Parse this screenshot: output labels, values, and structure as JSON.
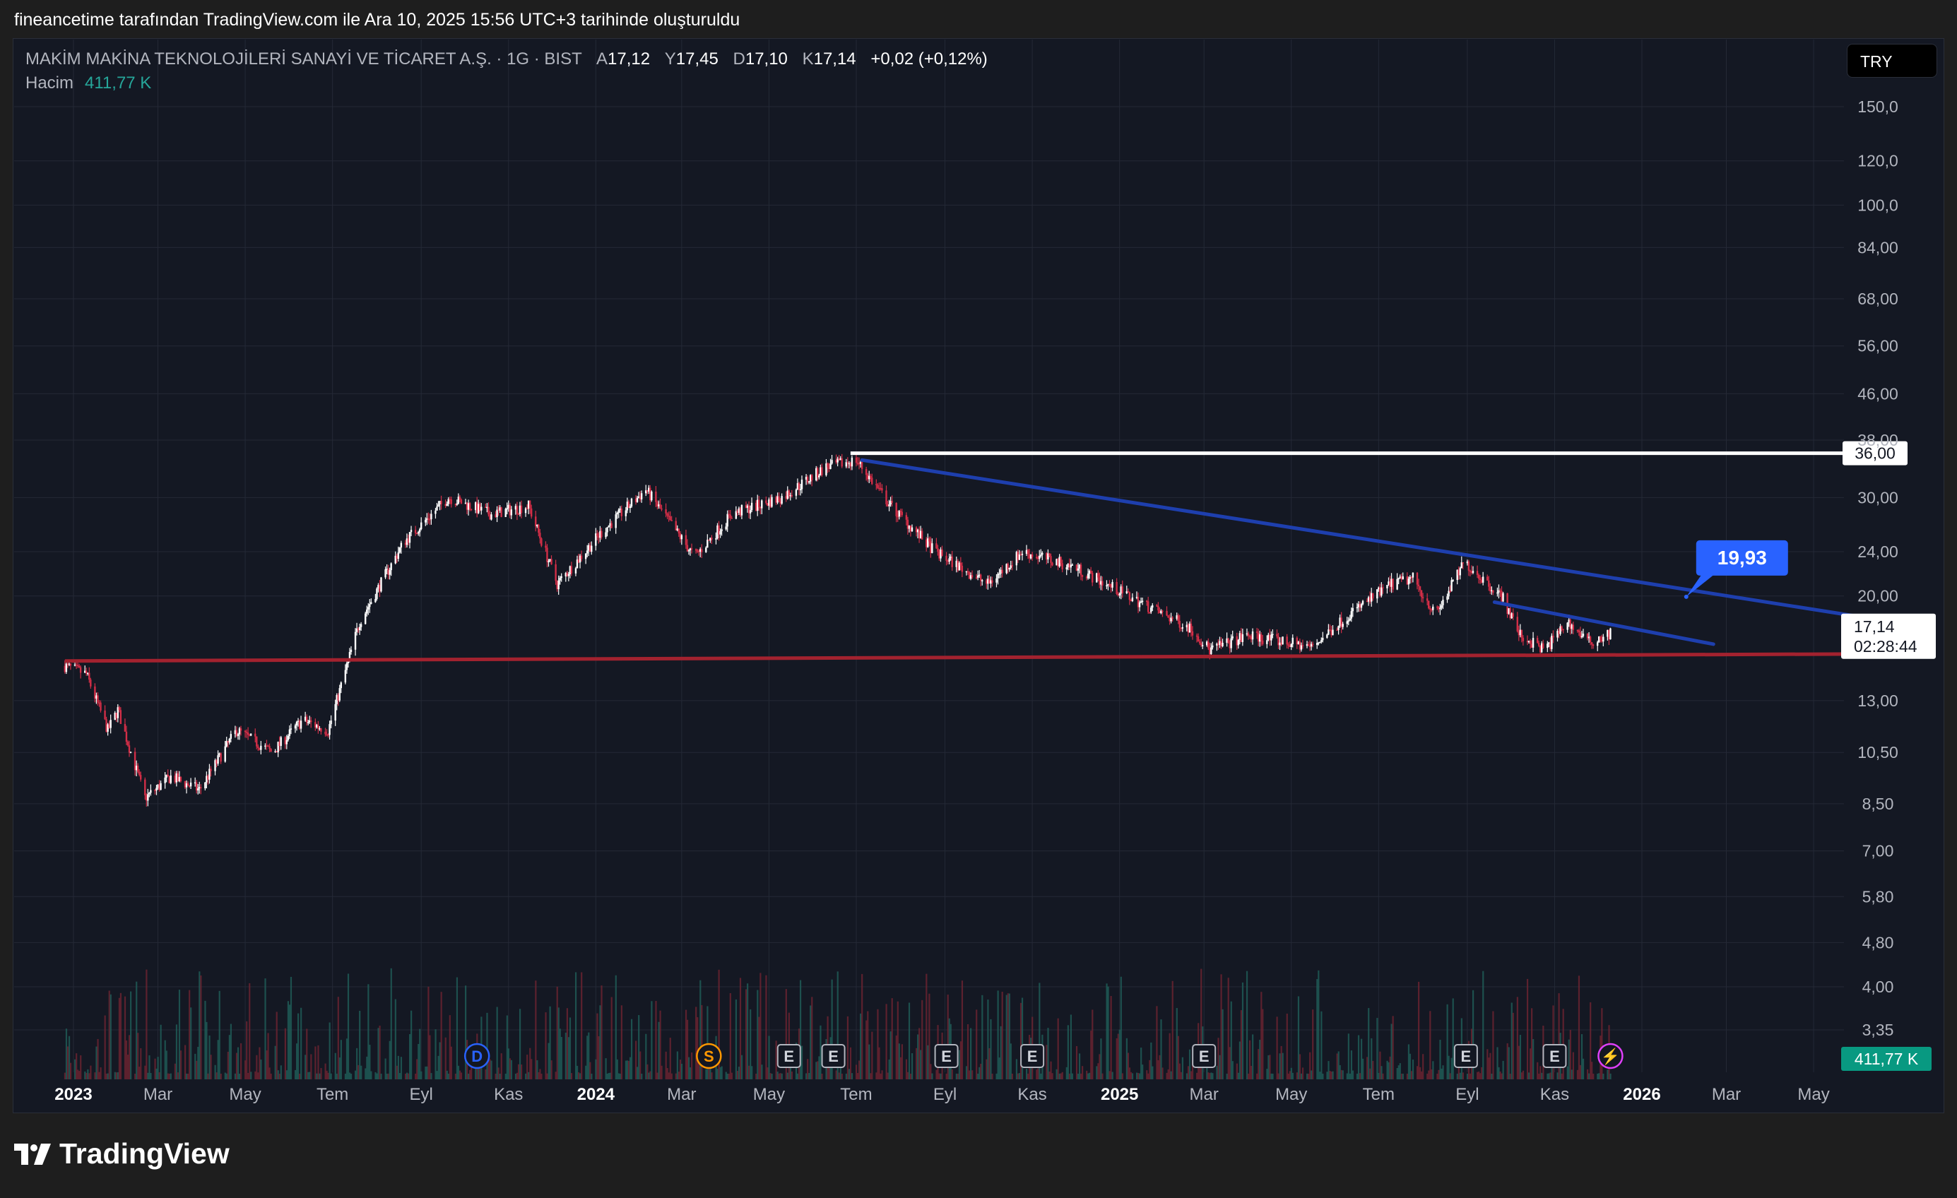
{
  "header": {
    "attribution": "fineancetime tarafından TradingView.com ile Ara 10, 2025 15:56 UTC+3 tarihinde oluşturuldu"
  },
  "legend": {
    "symbol": "MAKİM MAKİNA TEKNOLOJİLERİ SANAYİ VE TİCARET A.Ş. · 1G · BIST",
    "open_label": "A",
    "open": "17,12",
    "high_label": "Y",
    "high": "17,45",
    "low_label": "D",
    "low": "17,10",
    "close_label": "K",
    "close": "17,14",
    "change": "+0,02 (+0,12%)",
    "volume_label": "Hacim",
    "volume": "411,77 K"
  },
  "currency_button": "TRY",
  "footer": {
    "brand": "TradingView"
  },
  "chart_data": {
    "type": "candlestick",
    "scale": "log",
    "y_ticks": [
      "150,0",
      "120,0",
      "100,0",
      "84,00",
      "68,00",
      "56,00",
      "46,00",
      "38,00",
      "30,00",
      "24,00",
      "20,00",
      "13,00",
      "10,50",
      "8,50",
      "7,00",
      "5,80",
      "4,80",
      "4,00",
      "3,35"
    ],
    "x_ticks": [
      "2023",
      "Mar",
      "May",
      "Tem",
      "Eyl",
      "Kas",
      "2024",
      "Mar",
      "May",
      "Tem",
      "Eyl",
      "Kas",
      "2025",
      "Mar",
      "May",
      "Tem",
      "Eyl",
      "Kas",
      "2026",
      "Mar",
      "May"
    ],
    "price_path": [
      {
        "date": "2022-12-26",
        "price": 15.0
      },
      {
        "date": "2023-01-10",
        "price": 14.5
      },
      {
        "date": "2023-01-25",
        "price": 11.5
      },
      {
        "date": "2023-02-01",
        "price": 12.5
      },
      {
        "date": "2023-02-20",
        "price": 8.7
      },
      {
        "date": "2023-03-10",
        "price": 9.5
      },
      {
        "date": "2023-03-30",
        "price": 9.0
      },
      {
        "date": "2023-04-25",
        "price": 11.5
      },
      {
        "date": "2023-05-20",
        "price": 10.5
      },
      {
        "date": "2023-06-10",
        "price": 12.0
      },
      {
        "date": "2023-06-28",
        "price": 11.5
      },
      {
        "date": "2023-07-20",
        "price": 18.0
      },
      {
        "date": "2023-08-20",
        "price": 25.0
      },
      {
        "date": "2023-09-20",
        "price": 30.0
      },
      {
        "date": "2023-10-20",
        "price": 28.0
      },
      {
        "date": "2023-11-15",
        "price": 29.0
      },
      {
        "date": "2023-12-05",
        "price": 21.0
      },
      {
        "date": "2024-01-05",
        "price": 26.0
      },
      {
        "date": "2024-02-05",
        "price": 31.0
      },
      {
        "date": "2024-03-10",
        "price": 23.5
      },
      {
        "date": "2024-04-05",
        "price": 28.0
      },
      {
        "date": "2024-05-10",
        "price": 30.0
      },
      {
        "date": "2024-06-10",
        "price": 34.0
      },
      {
        "date": "2024-07-01",
        "price": 35.0
      },
      {
        "date": "2024-07-25",
        "price": 29.0
      },
      {
        "date": "2024-08-25",
        "price": 24.0
      },
      {
        "date": "2024-10-01",
        "price": 21.0
      },
      {
        "date": "2024-10-25",
        "price": 24.0
      },
      {
        "date": "2024-12-01",
        "price": 22.5
      },
      {
        "date": "2025-01-15",
        "price": 19.5
      },
      {
        "date": "2025-02-20",
        "price": 17.5
      },
      {
        "date": "2025-03-05",
        "price": 16.0
      },
      {
        "date": "2025-04-01",
        "price": 17.0
      },
      {
        "date": "2025-05-15",
        "price": 16.2
      },
      {
        "date": "2025-06-10",
        "price": 18.5
      },
      {
        "date": "2025-07-10",
        "price": 21.0
      },
      {
        "date": "2025-07-25",
        "price": 21.5
      },
      {
        "date": "2025-08-10",
        "price": 18.5
      },
      {
        "date": "2025-08-30",
        "price": 23.0
      },
      {
        "date": "2025-09-25",
        "price": 20.0
      },
      {
        "date": "2025-10-08",
        "price": 17.0
      },
      {
        "date": "2025-10-25",
        "price": 16.0
      },
      {
        "date": "2025-11-10",
        "price": 18.0
      },
      {
        "date": "2025-11-25",
        "price": 16.5
      },
      {
        "date": "2025-12-10",
        "price": 17.14
      }
    ],
    "last_price": "17,14",
    "countdown": "02:28:44",
    "volume_last": "411,77 K",
    "drawings": [
      {
        "kind": "horizontal-ray",
        "label": "36,00",
        "price": 36.0,
        "color": "#ffffff"
      },
      {
        "kind": "trendline",
        "from": {
          "date": "2024-07-05",
          "price": 35.0
        },
        "to": {
          "date": "2026-05-31",
          "price": 18.4
        },
        "color": "#1e3fae"
      },
      {
        "kind": "trendline",
        "from": {
          "date": "2025-09-20",
          "price": 19.5
        },
        "to": {
          "date": "2026-02-20",
          "price": 16.4
        },
        "color": "#1e3fae"
      },
      {
        "kind": "support-line",
        "from": {
          "date": "2022-12-26",
          "price": 15.3
        },
        "to": {
          "date": "2026-05-31",
          "price": 15.75
        },
        "color": "#a3222f"
      },
      {
        "kind": "callout",
        "label": "19,93",
        "color": "#2962ff"
      }
    ],
    "events": [
      {
        "label": "D",
        "date": "2023-10-10",
        "color": "#2962ff"
      },
      {
        "label": "S",
        "date": "2024-03-20",
        "color": "#ff9800"
      },
      {
        "label": "E",
        "date": "2024-05-15",
        "color": "#b2b5be"
      },
      {
        "label": "E",
        "date": "2024-06-15",
        "color": "#b2b5be"
      },
      {
        "label": "E",
        "date": "2024-09-02",
        "color": "#b2b5be"
      },
      {
        "label": "E",
        "date": "2024-11-01",
        "color": "#b2b5be"
      },
      {
        "label": "E",
        "date": "2025-03-01",
        "color": "#b2b5be"
      },
      {
        "label": "E",
        "date": "2025-08-31",
        "color": "#b2b5be"
      },
      {
        "label": "E",
        "date": "2025-11-01",
        "color": "#b2b5be"
      },
      {
        "label": "⚡",
        "date": "2025-12-10",
        "color": "#e040fb"
      }
    ],
    "colors": {
      "up": "#ffffff",
      "down": "#d22e47",
      "grid": "#242936",
      "axis_text": "#b2b5be",
      "volume_label_bg": "#089981"
    }
  }
}
